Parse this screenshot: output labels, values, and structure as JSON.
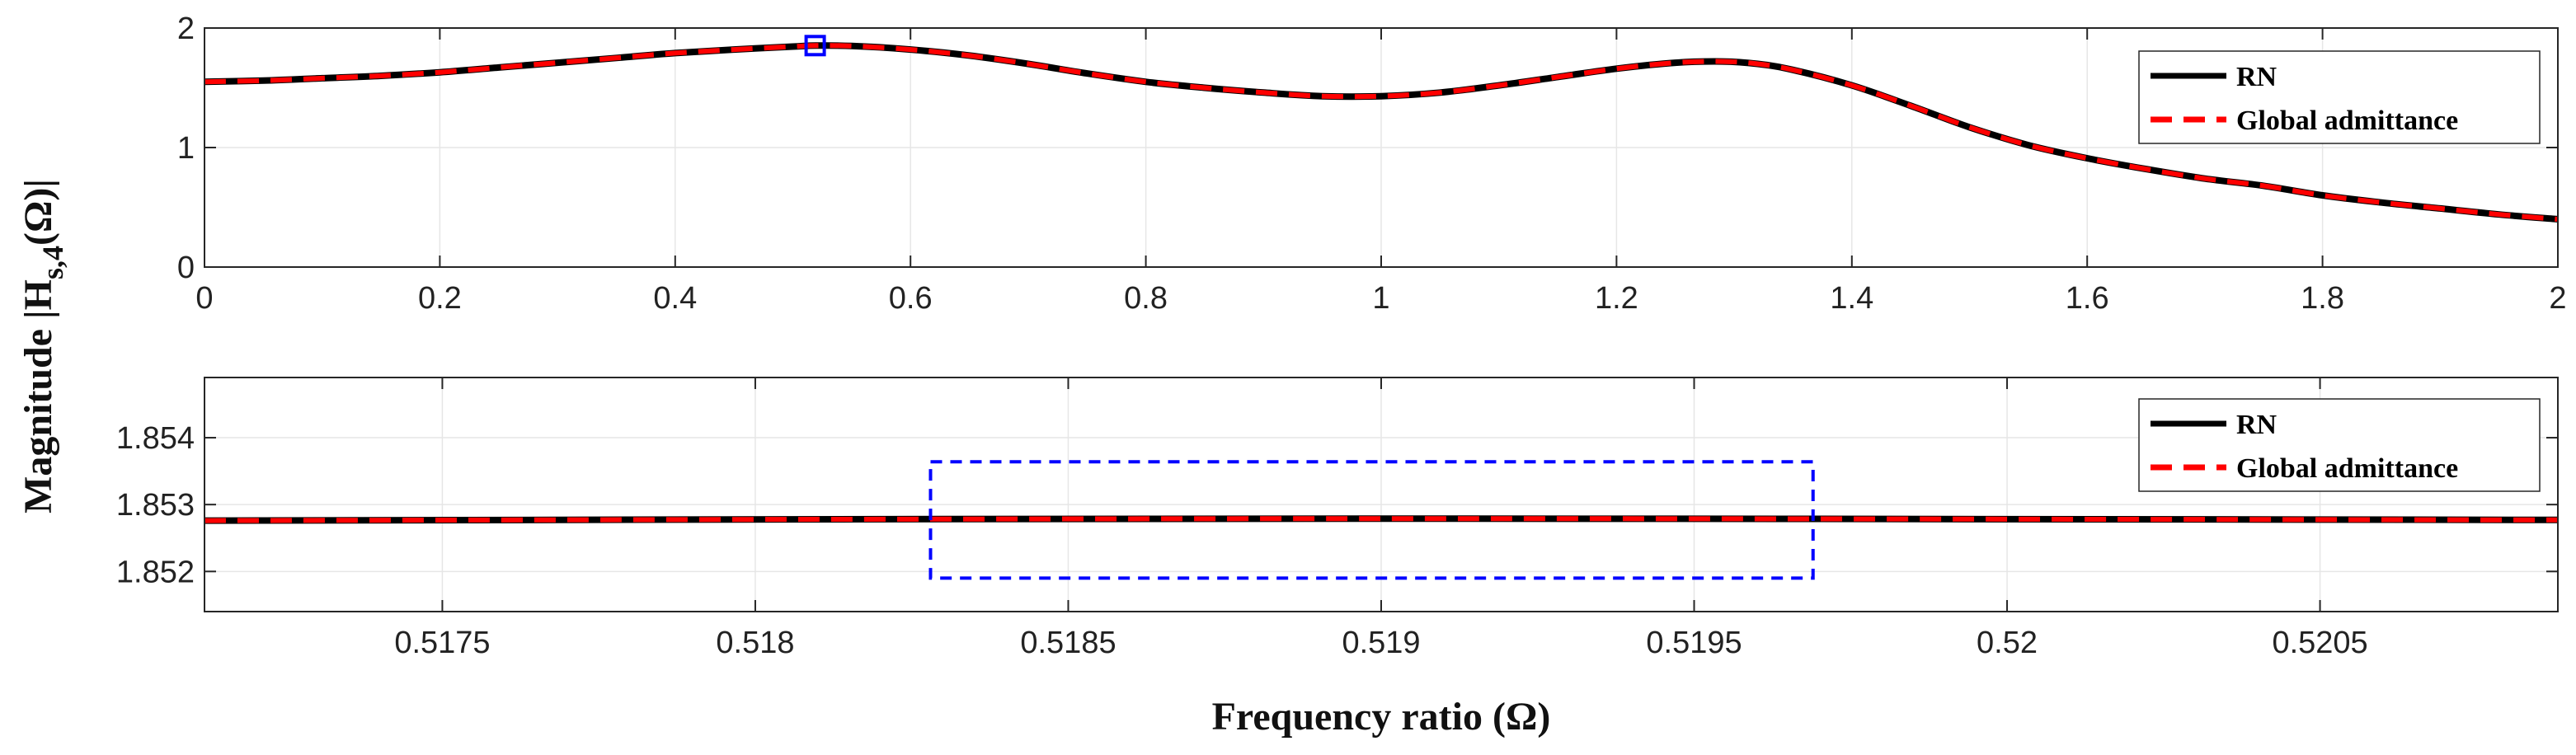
{
  "colors": {
    "rn": "#000000",
    "admittance": "#ff0000",
    "highlight": "#0000ff",
    "grid": "#e6e6e6",
    "axes": "#262626"
  },
  "labels": {
    "ylabel_prefix": "Magnitude |H",
    "ylabel_sub": "s,4",
    "ylabel_suffix": "(Ω)|",
    "xlabel": "Frequency ratio (Ω)"
  },
  "chart_data": [
    {
      "type": "line",
      "panel": "top",
      "xlabel": "",
      "ylabel": "Magnitude |Hs,4(Ω)|",
      "xlim": [
        0,
        2
      ],
      "ylim": [
        0,
        2
      ],
      "grid": true,
      "legend_position": "top-right",
      "xticks": [
        0,
        0.2,
        0.4,
        0.6,
        0.8,
        1,
        1.2,
        1.4,
        1.6,
        1.8,
        2
      ],
      "xtick_labels": [
        "0",
        "0.2",
        "0.4",
        "0.6",
        "0.8",
        "1",
        "1.2",
        "1.4",
        "1.6",
        "1.8",
        "2"
      ],
      "yticks": [
        0,
        1,
        2
      ],
      "ytick_labels": [
        "0",
        "1",
        "2"
      ],
      "x": [
        0,
        0.05,
        0.1,
        0.15,
        0.2,
        0.25,
        0.3,
        0.35,
        0.4,
        0.45,
        0.5,
        0.52,
        0.55,
        0.6,
        0.65,
        0.7,
        0.75,
        0.8,
        0.85,
        0.9,
        0.95,
        1.0,
        1.05,
        1.1,
        1.15,
        1.2,
        1.25,
        1.29,
        1.32,
        1.35,
        1.4,
        1.45,
        1.5,
        1.55,
        1.6,
        1.65,
        1.7,
        1.75,
        1.8,
        1.85,
        1.9,
        1.95,
        2.0
      ],
      "series": [
        {
          "name": "RN",
          "style": "solid",
          "values": [
            1.55,
            1.56,
            1.58,
            1.6,
            1.63,
            1.67,
            1.71,
            1.75,
            1.79,
            1.82,
            1.845,
            1.853,
            1.85,
            1.82,
            1.77,
            1.7,
            1.62,
            1.55,
            1.5,
            1.46,
            1.43,
            1.43,
            1.46,
            1.52,
            1.59,
            1.66,
            1.71,
            1.72,
            1.7,
            1.65,
            1.52,
            1.35,
            1.17,
            1.02,
            0.91,
            0.82,
            0.74,
            0.68,
            0.6,
            0.54,
            0.49,
            0.44,
            0.4
          ]
        },
        {
          "name": "Global admittance",
          "style": "dashed",
          "values": [
            1.55,
            1.56,
            1.58,
            1.6,
            1.63,
            1.67,
            1.71,
            1.75,
            1.79,
            1.82,
            1.845,
            1.853,
            1.85,
            1.82,
            1.77,
            1.7,
            1.62,
            1.55,
            1.5,
            1.46,
            1.43,
            1.43,
            1.46,
            1.52,
            1.59,
            1.66,
            1.71,
            1.72,
            1.7,
            1.65,
            1.52,
            1.35,
            1.17,
            1.02,
            0.91,
            0.82,
            0.74,
            0.68,
            0.6,
            0.54,
            0.49,
            0.44,
            0.4
          ]
        }
      ],
      "legend": [
        "RN",
        "Global admittance"
      ],
      "annotations": [
        {
          "type": "square-marker",
          "x": 0.519,
          "y": 1.853
        }
      ]
    },
    {
      "type": "line",
      "panel": "bottom",
      "xlabel": "Frequency ratio (Ω)",
      "ylabel": "",
      "xlim": [
        0.51712,
        0.52088
      ],
      "ylim": [
        1.8514,
        1.8549
      ],
      "grid": true,
      "legend_position": "top-right",
      "xticks": [
        0.5175,
        0.518,
        0.5185,
        0.519,
        0.5195,
        0.52,
        0.5205
      ],
      "xtick_labels": [
        "0.5175",
        "0.518",
        "0.5185",
        "0.519",
        "0.5195",
        "0.52",
        "0.5205"
      ],
      "yticks": [
        1.852,
        1.853,
        1.854
      ],
      "ytick_labels": [
        "1.852",
        "1.853",
        "1.854"
      ],
      "x": [
        0.51712,
        0.519,
        0.52088
      ],
      "series": [
        {
          "name": "RN",
          "style": "solid",
          "values": [
            1.85276,
            1.85279,
            1.85277
          ]
        },
        {
          "name": "Global admittance",
          "style": "dashed",
          "values": [
            1.85276,
            1.85279,
            1.85277
          ]
        }
      ],
      "legend": [
        "RN",
        "Global admittance"
      ],
      "annotations": [
        {
          "type": "dashed-rectangle",
          "x0": 0.51828,
          "x1": 0.51969,
          "y0": 1.8519,
          "y1": 1.85364
        }
      ]
    }
  ]
}
